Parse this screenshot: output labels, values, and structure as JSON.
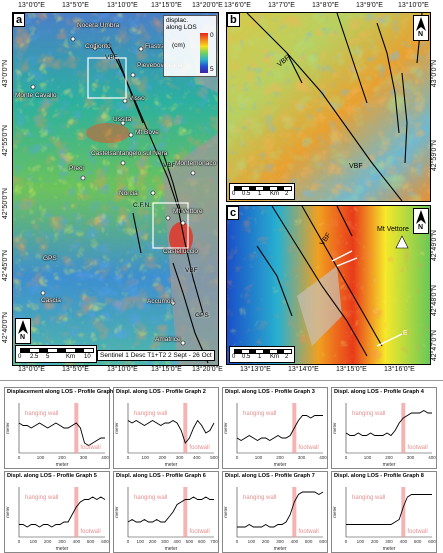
{
  "lon_ticks_a": [
    "13°0'0\"E",
    "13°5'0\"E",
    "13°10'0\"E",
    "13°15'0\"E",
    "13°20'0\"E"
  ],
  "lat_ticks_a": [
    "43°0'0\"N",
    "42°55'0\"N",
    "42°50'0\"N",
    "42°45'0\"N",
    "42°40'0\"N"
  ],
  "lon_ticks_b": [
    "13°6'0\"E",
    "13°7'0\"E",
    "13°8'0\"E",
    "13°9'0\"E",
    "13°10'0\"E"
  ],
  "lat_ticks_b": [
    "43°0'0\"N",
    "42°59'0\"N"
  ],
  "lon_ticks_c": [
    "13°13'0\"E",
    "13°14'0\"E",
    "13°15'0\"E",
    "13°16'0\"E"
  ],
  "lat_ticks_c": [
    "42°49'0\"N",
    "42°48'0\"N",
    "42°47'0\"N"
  ],
  "panel_a": {
    "letter": "a",
    "legend_title_1": "displac.",
    "legend_title_2": "along LOS",
    "legend_unit": "(cm)",
    "legend_max": "0",
    "legend_min": "5",
    "north": "N",
    "scale_labels": [
      "0",
      "2.5",
      "5",
      "Km",
      "10"
    ],
    "caption": "Sentinel 1 Desc T1+T2 2 Sept - 26 Oct",
    "towns": [
      "Nocera Umbra",
      "Colfiorito",
      "Fiastra",
      "Pievebovigliana",
      "Visso",
      "Monte Cavallo",
      "Ussita",
      "Mt Bove",
      "Castelsantangelo sul Nera",
      "Preci",
      "Montemonaco",
      "Norcia",
      "Castelluccio",
      "Mt Vettore",
      "Cascia",
      "Accumoli",
      "Amatrice"
    ],
    "fault_labels": [
      "VBF",
      "VBF",
      "VBF",
      "GPS",
      "GPS",
      "C.F.N."
    ]
  },
  "panel_b": {
    "letter": "b",
    "north": "N",
    "scale_labels": [
      "0",
      "0.5",
      "1",
      "Km",
      "2"
    ],
    "fault_labels": [
      "VBF",
      "VBF"
    ]
  },
  "panel_c": {
    "letter": "c",
    "north": "N",
    "scale_labels": [
      "0",
      "0.5",
      "1",
      "Km",
      "2"
    ],
    "peak": "Mt Vettore",
    "fault_labels": [
      "VBF",
      "E"
    ]
  },
  "profiles": [
    {
      "title": "Displacement along LOS - Profile Graph 1",
      "ylabel": "meter",
      "xlabel": "meter",
      "hw": "hanging wall",
      "fw": "footwall",
      "xticks": [
        "0",
        "100",
        "200",
        "300",
        "400"
      ],
      "profile": [
        0.012,
        0.011,
        0.011,
        0.01,
        0.011,
        0.012,
        0.011,
        0.01,
        0.011,
        0.012,
        0.011,
        0.01,
        0.01,
        0.011,
        0.012,
        0.01,
        0.004,
        0.003,
        0.004,
        0.005,
        0.006,
        0.006
      ]
    },
    {
      "title": "Displ. along LOS - Profile Graph 2",
      "ylabel": "meter",
      "xlabel": "meter",
      "hw": "hanging wall",
      "fw": "footwall",
      "xticks": [
        "0",
        "100",
        "200",
        "300",
        "400",
        "500"
      ],
      "profile": [
        0.013,
        0.012,
        0.013,
        0.012,
        0.011,
        0.012,
        0.013,
        0.012,
        0.011,
        0.012,
        0.012,
        0.013,
        0.012,
        0.009,
        0.004,
        0.006,
        0.01,
        0.013,
        0.011,
        0.008,
        0.009,
        0.012
      ]
    },
    {
      "title": "Displ. along LOS - Profile Graph 3",
      "ylabel": "meter",
      "xlabel": "meter",
      "hw": "hanging wall",
      "fw": "footwall",
      "xticks": [
        "0",
        "100",
        "200",
        "300",
        "400"
      ],
      "profile": [
        0.006,
        0.005,
        0.006,
        0.007,
        0.006,
        0.005,
        0.006,
        0.006,
        0.005,
        0.006,
        0.007,
        0.006,
        0.006,
        0.007,
        0.01,
        0.013,
        0.015,
        0.015,
        0.014,
        0.015,
        0.015,
        0.015
      ]
    },
    {
      "title": "Displ. along LOS - Profile Graph 4",
      "ylabel": "meter",
      "xlabel": "meter",
      "hw": "hanging wall",
      "fw": "footwall",
      "xticks": [
        "0",
        "100",
        "200",
        "300",
        "400"
      ],
      "profile": [
        0.008,
        0.007,
        0.007,
        0.008,
        0.007,
        0.007,
        0.008,
        0.007,
        0.007,
        0.007,
        0.008,
        0.007,
        0.009,
        0.012,
        0.014,
        0.015,
        0.016,
        0.016,
        0.016,
        0.017,
        0.016,
        0.016
      ]
    },
    {
      "title": "Displ. along LOS - Profile Graph 5",
      "ylabel": "meter",
      "xlabel": "meter",
      "hw": "hanging wall",
      "fw": "footwall",
      "xticks": [
        "0",
        "100",
        "200",
        "300",
        "400",
        "500",
        "600"
      ],
      "profile": [
        0.005,
        0.005,
        0.004,
        0.005,
        0.005,
        0.004,
        0.005,
        0.005,
        0.004,
        0.005,
        0.005,
        0.006,
        0.006,
        0.009,
        0.012,
        0.014,
        0.015,
        0.015,
        0.016,
        0.015,
        0.016,
        0.015
      ]
    },
    {
      "title": "Displ. along LOS - Profile Graph 6",
      "ylabel": "meter",
      "xlabel": "meter",
      "hw": "hanging wall",
      "fw": "footwall",
      "xticks": [
        "0",
        "100",
        "200",
        "300",
        "400",
        "500",
        "600",
        "700"
      ],
      "profile": [
        0.006,
        0.007,
        0.006,
        0.006,
        0.007,
        0.006,
        0.006,
        0.007,
        0.006,
        0.006,
        0.008,
        0.01,
        0.013,
        0.014,
        0.015,
        0.015,
        0.016,
        0.015,
        0.015,
        0.016,
        0.015,
        0.015
      ]
    },
    {
      "title": "Displ. along LOS - Profile Graph 7",
      "ylabel": "meter",
      "xlabel": "meter",
      "hw": "hanging wall",
      "fw": "footwall",
      "xticks": [
        "0",
        "100",
        "200",
        "300",
        "400",
        "500",
        "600"
      ],
      "profile": [
        0.004,
        0.004,
        0.004,
        0.005,
        0.004,
        0.004,
        0.004,
        0.005,
        0.004,
        0.004,
        0.005,
        0.005,
        0.006,
        0.009,
        0.014,
        0.017,
        0.018,
        0.018,
        0.018,
        0.018,
        0.017,
        0.018
      ]
    },
    {
      "title": "Displ. along LOS - Profile Graph 8",
      "ylabel": "meter",
      "xlabel": "meter",
      "hw": "hanging wall",
      "fw": "footwall",
      "xticks": [
        "0",
        "100",
        "200",
        "300",
        "400",
        "500",
        "600"
      ],
      "profile": [
        0.005,
        0.005,
        0.005,
        0.005,
        0.005,
        0.005,
        0.005,
        0.005,
        0.005,
        0.005,
        0.005,
        0.005,
        0.006,
        0.007,
        0.012,
        0.016,
        0.017,
        0.017,
        0.017,
        0.017,
        0.017,
        0.017
      ]
    }
  ]
}
